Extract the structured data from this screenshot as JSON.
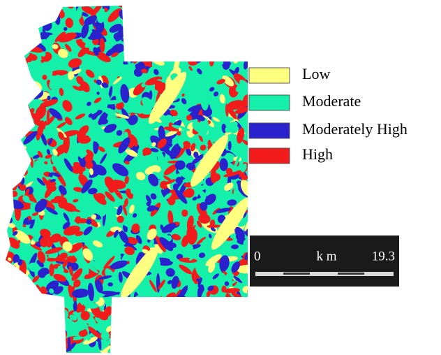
{
  "legend": {
    "items": [
      {
        "label": "Low",
        "color": "#ffff80"
      },
      {
        "label": "Moderate",
        "color": "#14f0aa"
      },
      {
        "label": "Moderately High",
        "color": "#2a22cc"
      },
      {
        "label": "High",
        "color": "#f21c1c"
      }
    ]
  },
  "scale_bar": {
    "start": 0,
    "unit": "k m",
    "end": 19.3
  }
}
